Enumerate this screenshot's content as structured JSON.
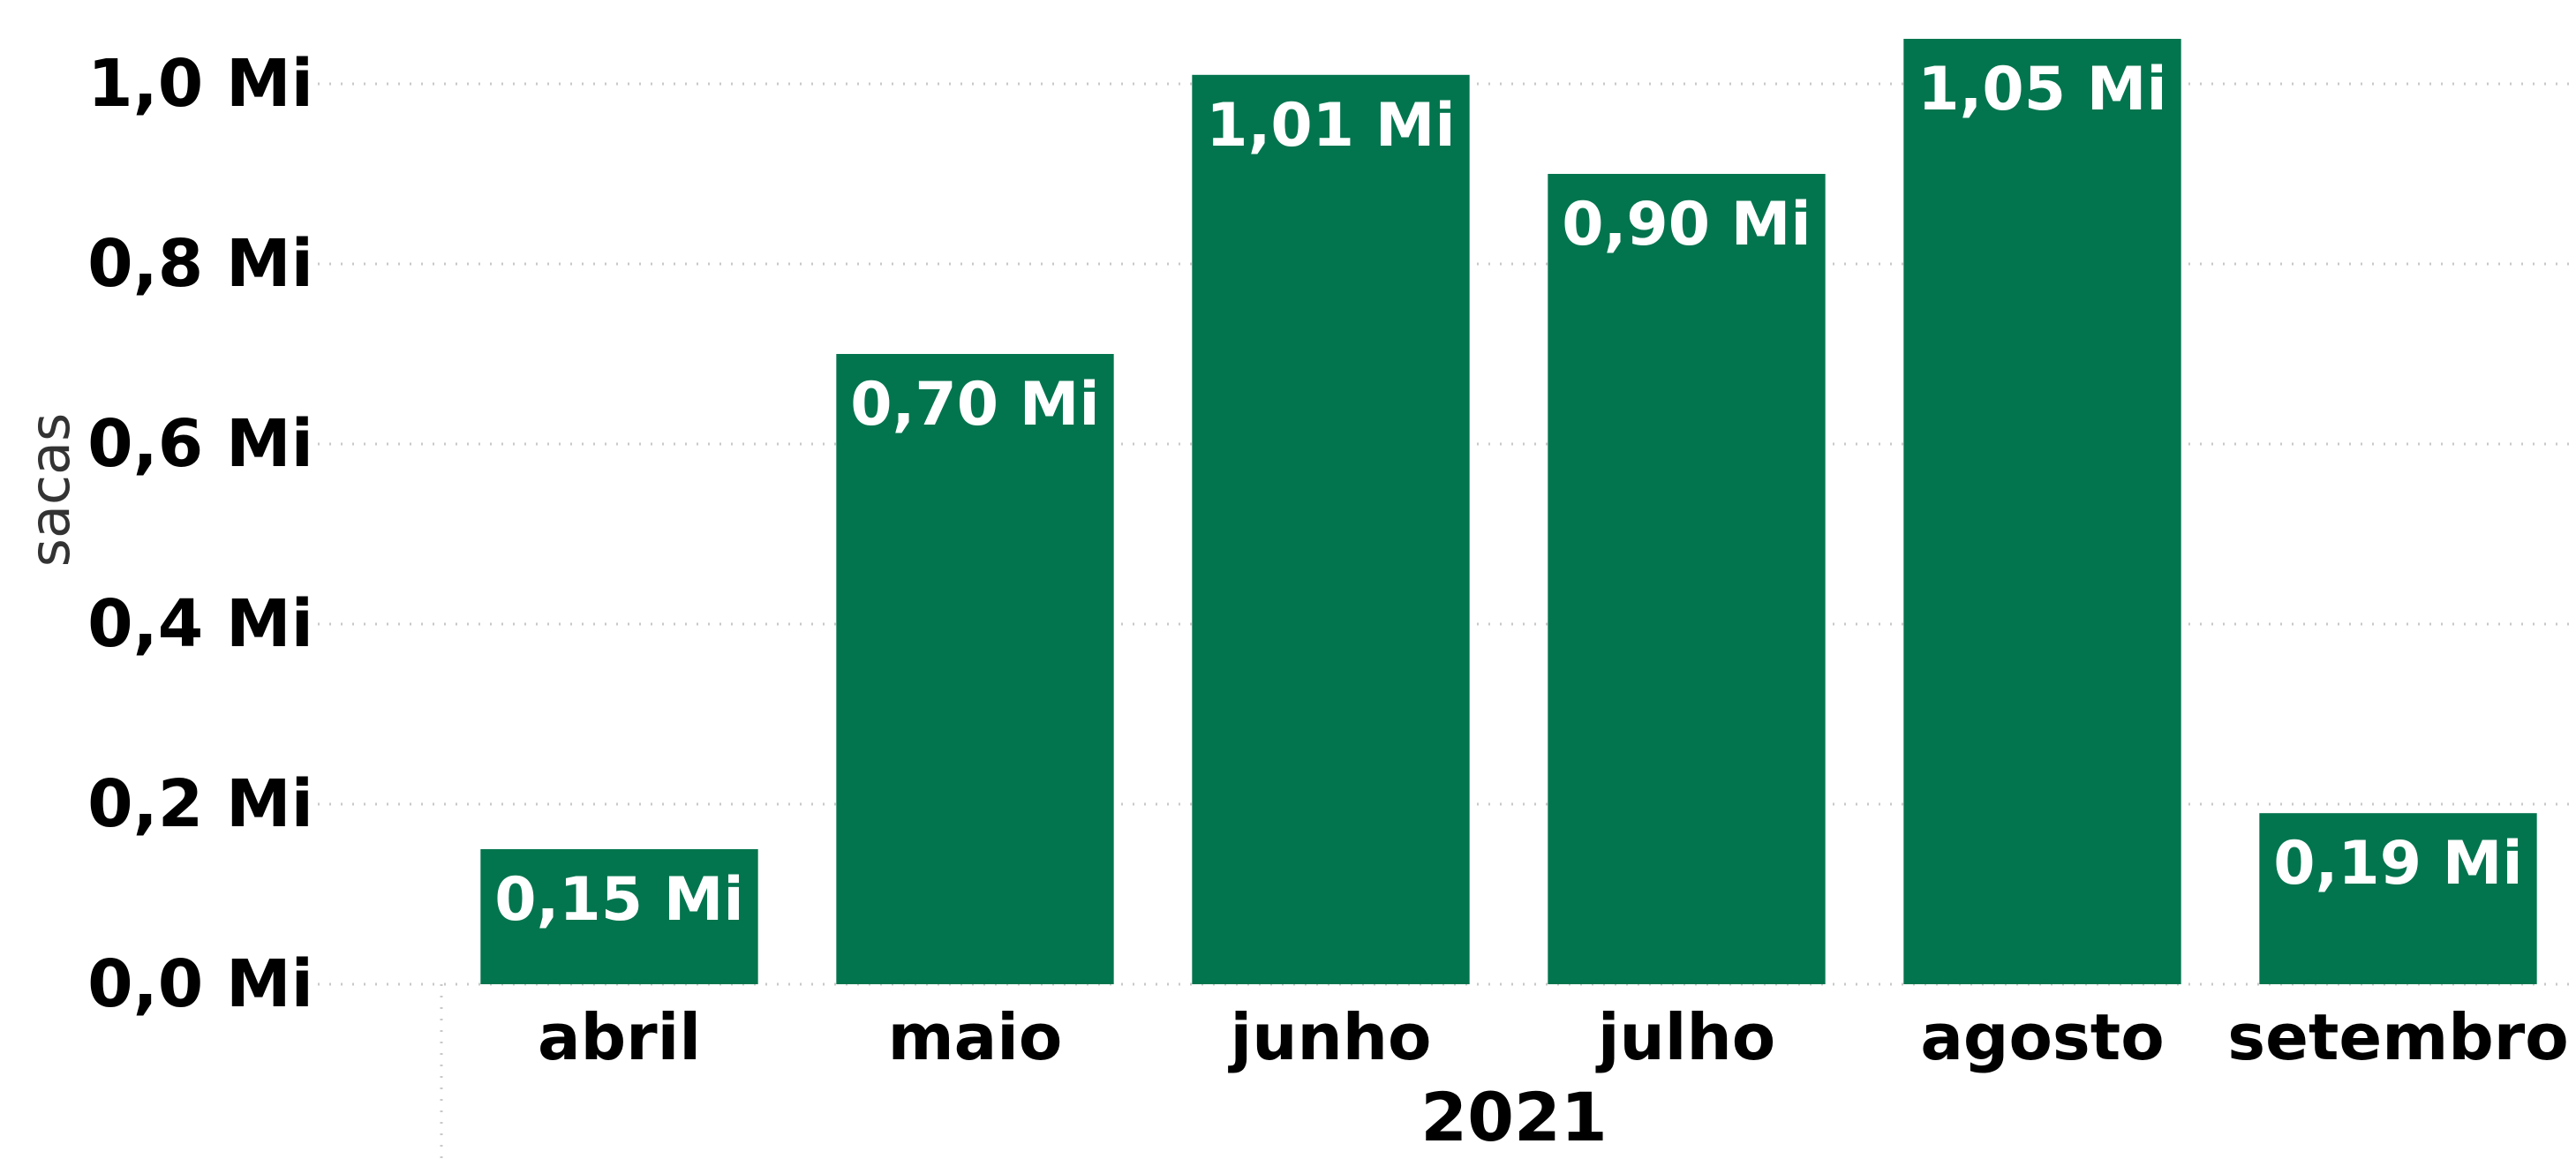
{
  "chart_data": {
    "type": "bar",
    "categories": [
      "abril",
      "maio",
      "junho",
      "julho",
      "agosto",
      "setembro"
    ],
    "values": [
      0.15,
      0.7,
      1.01,
      0.9,
      1.05,
      0.19
    ],
    "data_labels": [
      "0,15 Mi",
      "0,70 Mi",
      "1,01 Mi",
      "0,90 Mi",
      "1,05 Mi",
      "0,19 Mi"
    ],
    "y_ticks": [
      0,
      0.2,
      0.4,
      0.6,
      0.8,
      1.0
    ],
    "y_tick_labels": [
      "0,0 Mi",
      "0,2 Mi",
      "0,4 Mi",
      "0,6 Mi",
      "0,8 Mi",
      "1,0 Mi"
    ],
    "xlabel": "2021",
    "ylabel": "sacas",
    "ylim": [
      0,
      1.0
    ],
    "grid": true,
    "bar_color": "#03754e",
    "label_color": "#ffffff"
  }
}
